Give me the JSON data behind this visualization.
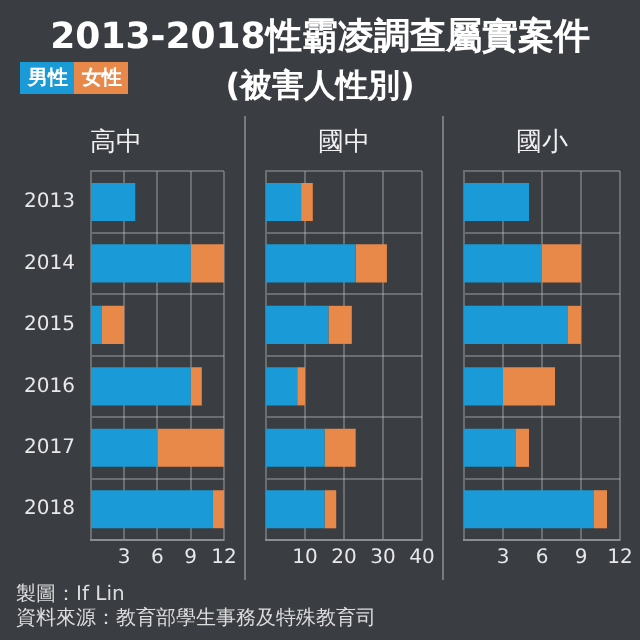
{
  "chart_data": [
    {
      "type": "other",
      "title": "2013-2018性霸凌調查屬實案件",
      "subtitle": "(被害人性別)",
      "annotations": [
        "製圖：If Lin",
        "資料來源：教育部學生事務及特殊教育司"
      ]
    },
    {
      "type": "bar",
      "orientation": "horizontal",
      "stacked": true,
      "title": "高中",
      "categories": [
        "2013",
        "2014",
        "2015",
        "2016",
        "2017",
        "2018"
      ],
      "series": [
        {
          "name": "男性",
          "color": "#1a9ad6",
          "values": [
            4,
            9,
            1,
            9,
            6,
            11
          ]
        },
        {
          "name": "女性",
          "color": "#e8894a",
          "values": [
            0,
            3,
            2,
            1,
            6,
            1
          ]
        }
      ],
      "xlim": [
        0,
        12
      ],
      "xticks": [
        3,
        6,
        9,
        12
      ],
      "grid": true,
      "legend": "top left"
    },
    {
      "type": "bar",
      "orientation": "horizontal",
      "stacked": true,
      "title": "國中",
      "categories": [
        "2013",
        "2014",
        "2015",
        "2016",
        "2017",
        "2018"
      ],
      "series": [
        {
          "color": "#1a9ad6",
          "values": [
            9,
            23,
            16,
            8,
            15,
            15
          ]
        },
        {
          "color": "#e8894a",
          "values": [
            3,
            8,
            6,
            2,
            8,
            3
          ]
        }
      ],
      "xlim": [
        0,
        40
      ],
      "xticks": [
        10,
        20,
        30,
        40
      ],
      "grid": true,
      "tick_labels": "x"
    },
    {
      "type": "bar",
      "orientation": "horizontal",
      "stacked": true,
      "title": "國小",
      "categories": [
        "2013",
        "2014",
        "2015",
        "2016",
        "2017",
        "2018"
      ],
      "series": [
        {
          "color": "#1a9ad6",
          "values": [
            5,
            6,
            8,
            3,
            4,
            10
          ]
        },
        {
          "color": "#e8894a",
          "values": [
            0,
            3,
            1,
            4,
            1,
            1
          ]
        }
      ],
      "xlim": [
        0,
        12
      ],
      "xticks": [
        3,
        6,
        9,
        12
      ],
      "grid": true,
      "tick_labels": "x"
    }
  ]
}
